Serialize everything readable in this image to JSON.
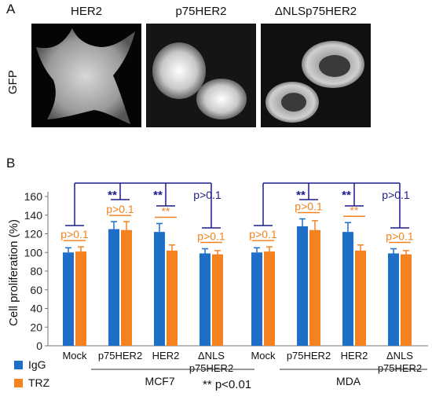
{
  "panel_a": {
    "letter": "A",
    "row_label": "GFP",
    "titles": [
      "HER2",
      "p75HER2",
      "ΔNLSp75HER2"
    ]
  },
  "panel_b": {
    "letter": "B"
  },
  "significance_note": "** p<0.01",
  "colors": {
    "igg": "#1f6fc9",
    "trz": "#f58220",
    "bracket": "#1b1b8f",
    "orange_text": "#f58220"
  },
  "chart_data": {
    "type": "bar",
    "ylabel": "Cell proliferation (%)",
    "ylim": [
      0,
      160
    ],
    "yticks": [
      0,
      20,
      40,
      60,
      80,
      100,
      120,
      140,
      160
    ],
    "categories": [
      "Mock",
      "p75HER2",
      "HER2",
      "ΔNLS\np75HER2"
    ],
    "groups": [
      {
        "name": "MCF7",
        "series": [
          {
            "name": "IgG",
            "values": [
              100,
              125,
              122,
              99
            ],
            "errors": [
              5,
              8,
              9,
              5
            ]
          },
          {
            "name": "TRZ",
            "values": [
              101,
              124,
              102,
              98
            ],
            "errors": [
              5,
              9,
              6,
              4
            ]
          }
        ],
        "pair_labels": [
          "p>0.1",
          "p>0.1",
          "**",
          "p>0.1"
        ],
        "bracket_labels": [
          "**",
          "**",
          "p>0.1"
        ]
      },
      {
        "name": "MDA",
        "series": [
          {
            "name": "IgG",
            "values": [
              100,
              128,
              122,
              99
            ],
            "errors": [
              5,
              8,
              10,
              5
            ]
          },
          {
            "name": "TRZ",
            "values": [
              101,
              124,
              102,
              98
            ],
            "errors": [
              5,
              10,
              6,
              4
            ]
          }
        ],
        "pair_labels": [
          "p>0.1",
          "p>0.1",
          "**",
          "p>0.1"
        ],
        "bracket_labels": [
          "**",
          "**",
          "p>0.1"
        ]
      }
    ],
    "legend": {
      "placement": "bottom-left",
      "entries": [
        "IgG",
        "TRZ"
      ]
    }
  }
}
